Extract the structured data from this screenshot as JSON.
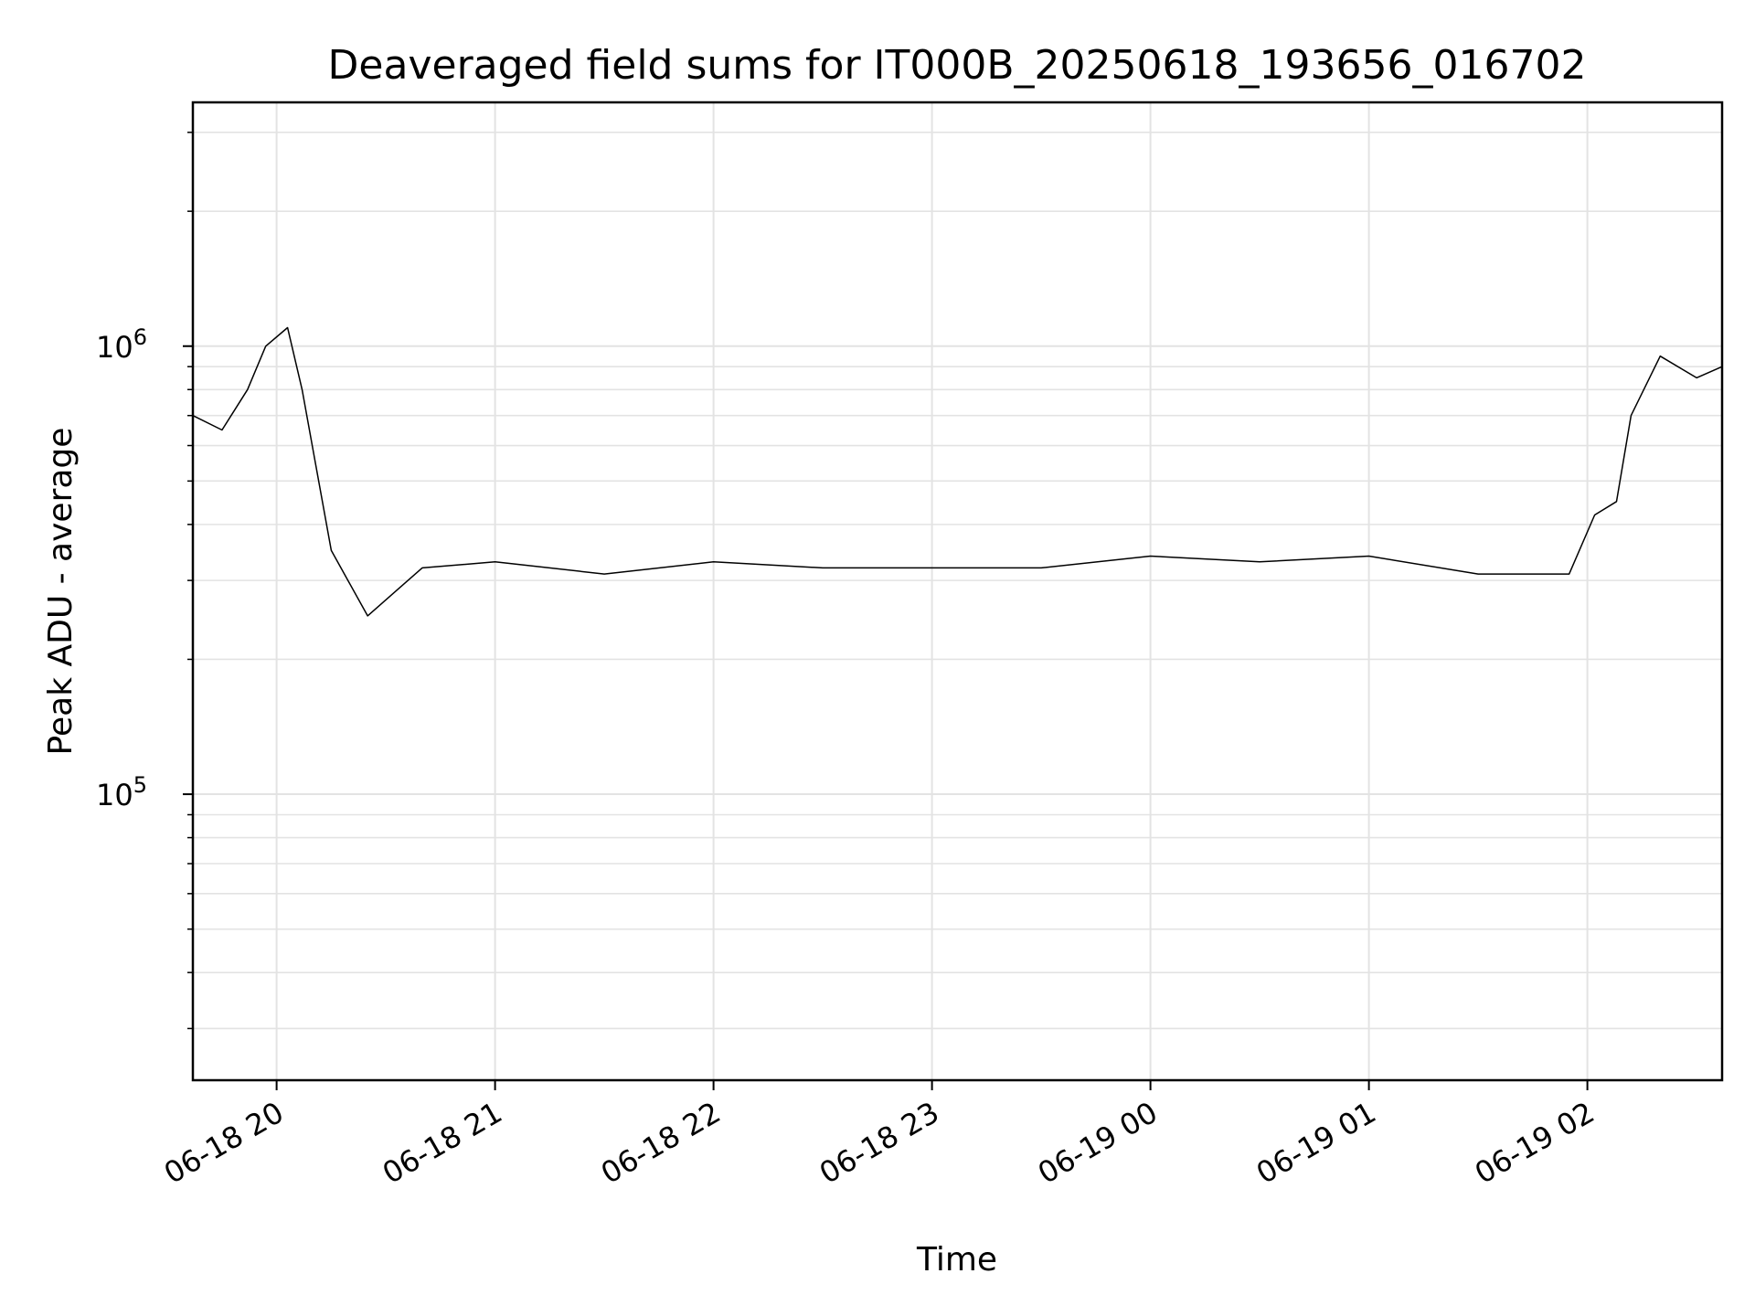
{
  "chart_data": {
    "type": "line",
    "title": "Deaveraged field sums for IT000B_20250618_193656_016702",
    "xlabel": "Time",
    "ylabel": "Peak ADU - average",
    "yscale": "log",
    "xlim": [
      "2025-06-18T19:37:00",
      "2025-06-19T02:37:00"
    ],
    "ylim": [
      23000,
      3500000
    ],
    "grid": true,
    "line_color": "#000000",
    "x_ticks": [
      {
        "t": "2025-06-18T20:00:00",
        "label": "06-18 20"
      },
      {
        "t": "2025-06-18T21:00:00",
        "label": "06-18 21"
      },
      {
        "t": "2025-06-18T22:00:00",
        "label": "06-18 22"
      },
      {
        "t": "2025-06-18T23:00:00",
        "label": "06-18 23"
      },
      {
        "t": "2025-06-19T00:00:00",
        "label": "06-19 00"
      },
      {
        "t": "2025-06-19T01:00:00",
        "label": "06-19 01"
      },
      {
        "t": "2025-06-19T02:00:00",
        "label": "06-19 02"
      }
    ],
    "y_ticks": [
      {
        "value": 100000,
        "base": "10",
        "exp": "5"
      },
      {
        "value": 1000000,
        "base": "10",
        "exp": "6"
      }
    ],
    "series": [
      {
        "name": "",
        "x": [
          "2025-06-18T19:37:00",
          "2025-06-18T19:45:00",
          "2025-06-18T19:52:00",
          "2025-06-18T19:57:00",
          "2025-06-18T20:03:00",
          "2025-06-18T20:07:00",
          "2025-06-18T20:15:00",
          "2025-06-18T20:25:00",
          "2025-06-18T20:40:00",
          "2025-06-18T21:00:00",
          "2025-06-18T21:30:00",
          "2025-06-18T22:00:00",
          "2025-06-18T22:30:00",
          "2025-06-18T23:00:00",
          "2025-06-18T23:30:00",
          "2025-06-19T00:00:00",
          "2025-06-19T00:30:00",
          "2025-06-19T01:00:00",
          "2025-06-19T01:30:00",
          "2025-06-19T01:55:00",
          "2025-06-19T02:02:00",
          "2025-06-19T02:08:00",
          "2025-06-19T02:12:00",
          "2025-06-19T02:20:00",
          "2025-06-19T02:30:00",
          "2025-06-19T02:37:00"
        ],
        "y": [
          700000,
          650000,
          800000,
          1000000,
          1100000,
          800000,
          350000,
          250000,
          320000,
          330000,
          310000,
          330000,
          320000,
          320000,
          320000,
          340000,
          330000,
          340000,
          310000,
          310000,
          420000,
          450000,
          700000,
          950000,
          850000,
          900000
        ]
      }
    ]
  }
}
